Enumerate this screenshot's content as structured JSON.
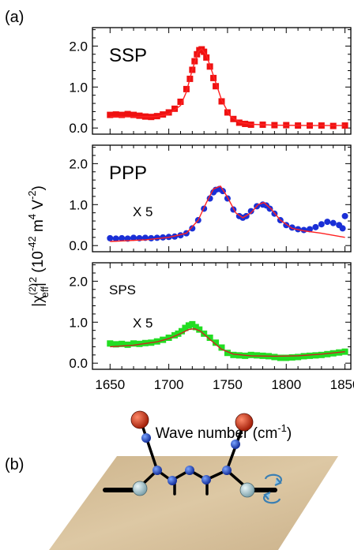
{
  "panel_labels": {
    "a": "(a)",
    "b": "(b)"
  },
  "chart_data": [
    {
      "type": "scatter",
      "panel": "SSP",
      "label": "SSP",
      "multiplier": "",
      "ylim": [
        -0.15,
        2.45
      ],
      "xlim": [
        1635,
        1855
      ],
      "yticks": [
        "0.0",
        "1.0",
        "2.0"
      ],
      "marker": "square",
      "colors": {
        "marker": "#ee1111",
        "fit": "#ff2222"
      },
      "series": [
        {
          "x": [
            1650,
            1655,
            1660,
            1665,
            1670,
            1675,
            1680,
            1685,
            1690,
            1695,
            1700,
            1705,
            1710,
            1715,
            1718,
            1720,
            1722,
            1724,
            1726,
            1728,
            1730,
            1732,
            1735,
            1738,
            1740,
            1745,
            1750,
            1755,
            1760,
            1765,
            1770,
            1780,
            1790,
            1800,
            1810,
            1820,
            1830,
            1840,
            1850
          ],
          "y": [
            0.32,
            0.33,
            0.32,
            0.34,
            0.32,
            0.3,
            0.28,
            0.27,
            0.29,
            0.33,
            0.38,
            0.47,
            0.64,
            0.95,
            1.2,
            1.42,
            1.63,
            1.8,
            1.9,
            1.92,
            1.86,
            1.72,
            1.5,
            1.22,
            1.02,
            0.65,
            0.38,
            0.22,
            0.13,
            0.1,
            0.08,
            0.08,
            0.07,
            0.07,
            0.06,
            0.06,
            0.06,
            0.05,
            0.06
          ]
        }
      ],
      "fit": {
        "x": [
          1650,
          1670,
          1690,
          1700,
          1710,
          1715,
          1720,
          1725,
          1728,
          1732,
          1738,
          1745,
          1752,
          1760,
          1770,
          1790,
          1820,
          1850
        ],
        "y": [
          0.28,
          0.27,
          0.28,
          0.34,
          0.55,
          0.88,
          1.42,
          1.86,
          1.93,
          1.78,
          1.28,
          0.68,
          0.3,
          0.14,
          0.09,
          0.07,
          0.06,
          0.06
        ]
      }
    },
    {
      "type": "scatter",
      "panel": "PPP",
      "label": "PPP",
      "multiplier": "X 5",
      "ylim": [
        -0.15,
        2.45
      ],
      "xlim": [
        1635,
        1855
      ],
      "yticks": [
        "0.0",
        "1.0",
        "2.0"
      ],
      "marker": "circle",
      "colors": {
        "marker": "#1a2fd6",
        "fit": "#ff2222"
      },
      "series": [
        {
          "x": [
            1650,
            1655,
            1660,
            1665,
            1670,
            1675,
            1680,
            1685,
            1690,
            1695,
            1700,
            1705,
            1710,
            1715,
            1720,
            1725,
            1730,
            1735,
            1738,
            1740,
            1743,
            1746,
            1750,
            1755,
            1760,
            1763,
            1766,
            1770,
            1775,
            1780,
            1783,
            1786,
            1790,
            1795,
            1800,
            1805,
            1810,
            1815,
            1820,
            1825,
            1830,
            1835,
            1840,
            1845,
            1848,
            1850
          ],
          "y": [
            0.18,
            0.17,
            0.18,
            0.17,
            0.19,
            0.18,
            0.19,
            0.18,
            0.19,
            0.2,
            0.21,
            0.22,
            0.25,
            0.3,
            0.42,
            0.62,
            0.9,
            1.15,
            1.3,
            1.36,
            1.38,
            1.33,
            1.15,
            0.88,
            0.72,
            0.68,
            0.72,
            0.84,
            0.96,
            1.0,
            0.98,
            0.9,
            0.78,
            0.62,
            0.5,
            0.44,
            0.4,
            0.38,
            0.4,
            0.45,
            0.52,
            0.58,
            0.55,
            0.5,
            0.42,
            0.72
          ]
        }
      ],
      "fit": {
        "x": [
          1650,
          1680,
          1700,
          1715,
          1725,
          1732,
          1738,
          1744,
          1750,
          1757,
          1763,
          1770,
          1776,
          1781,
          1787,
          1795,
          1805,
          1815,
          1830,
          1850
        ],
        "y": [
          0.1,
          0.14,
          0.2,
          0.3,
          0.62,
          1.05,
          1.38,
          1.45,
          1.18,
          0.8,
          0.68,
          0.8,
          1.0,
          1.05,
          0.9,
          0.62,
          0.42,
          0.36,
          0.3,
          0.2
        ]
      }
    },
    {
      "type": "scatter",
      "panel": "SPS",
      "label": "SPS",
      "multiplier": "X 5",
      "ylim": [
        -0.15,
        2.45
      ],
      "xlim": [
        1635,
        1855
      ],
      "yticks": [
        "0.0",
        "1.0",
        "2.0"
      ],
      "xticks": [
        1650,
        1700,
        1750,
        1800,
        1850
      ],
      "xlabel": "Wave number (cm",
      "xlabel_sup": "-1",
      "xlabel_end": ")",
      "marker": "square",
      "colors": {
        "marker": "#22dd22",
        "fit": "#cc2222"
      },
      "series": [
        {
          "x": [
            1650,
            1655,
            1660,
            1665,
            1670,
            1675,
            1680,
            1685,
            1690,
            1695,
            1700,
            1705,
            1708,
            1711,
            1714,
            1717,
            1720,
            1723,
            1726,
            1730,
            1735,
            1740,
            1745,
            1750,
            1755,
            1760,
            1765,
            1770,
            1775,
            1780,
            1785,
            1790,
            1795,
            1800,
            1805,
            1810,
            1815,
            1820,
            1825,
            1830,
            1835,
            1840,
            1845,
            1850
          ],
          "y": [
            0.48,
            0.46,
            0.47,
            0.45,
            0.48,
            0.47,
            0.49,
            0.5,
            0.53,
            0.57,
            0.62,
            0.68,
            0.72,
            0.78,
            0.86,
            0.92,
            0.95,
            0.88,
            0.82,
            0.72,
            0.62,
            0.5,
            0.38,
            0.25,
            0.2,
            0.19,
            0.18,
            0.2,
            0.19,
            0.18,
            0.17,
            0.15,
            0.13,
            0.13,
            0.14,
            0.15,
            0.17,
            0.18,
            0.19,
            0.2,
            0.22,
            0.24,
            0.26,
            0.28
          ]
        }
      ],
      "fit": {
        "x": [
          1650,
          1670,
          1690,
          1700,
          1710,
          1717,
          1722,
          1727,
          1735,
          1745,
          1755,
          1770,
          1790,
          1810,
          1830,
          1850
        ],
        "y": [
          0.4,
          0.44,
          0.52,
          0.6,
          0.72,
          0.82,
          0.84,
          0.78,
          0.58,
          0.34,
          0.22,
          0.18,
          0.17,
          0.18,
          0.22,
          0.28
        ]
      }
    }
  ],
  "ylabel_parts": {
    "base": "|χ",
    "sup2": "(2)",
    "sub": "eff",
    "bar": "|",
    "sup_pow": "2",
    "units_open": " (10",
    "exp1": "-42",
    "units_m": " m",
    "exp2": "4",
    "units_v": " V",
    "exp3": "-2",
    "units_close": ")"
  },
  "molecule_colors": {
    "surface": "#d6c09a",
    "oxygen": "#c8351a",
    "carbon": "#1f4fd0",
    "end_atom": "#a9c7cf",
    "bond": "#000000"
  }
}
